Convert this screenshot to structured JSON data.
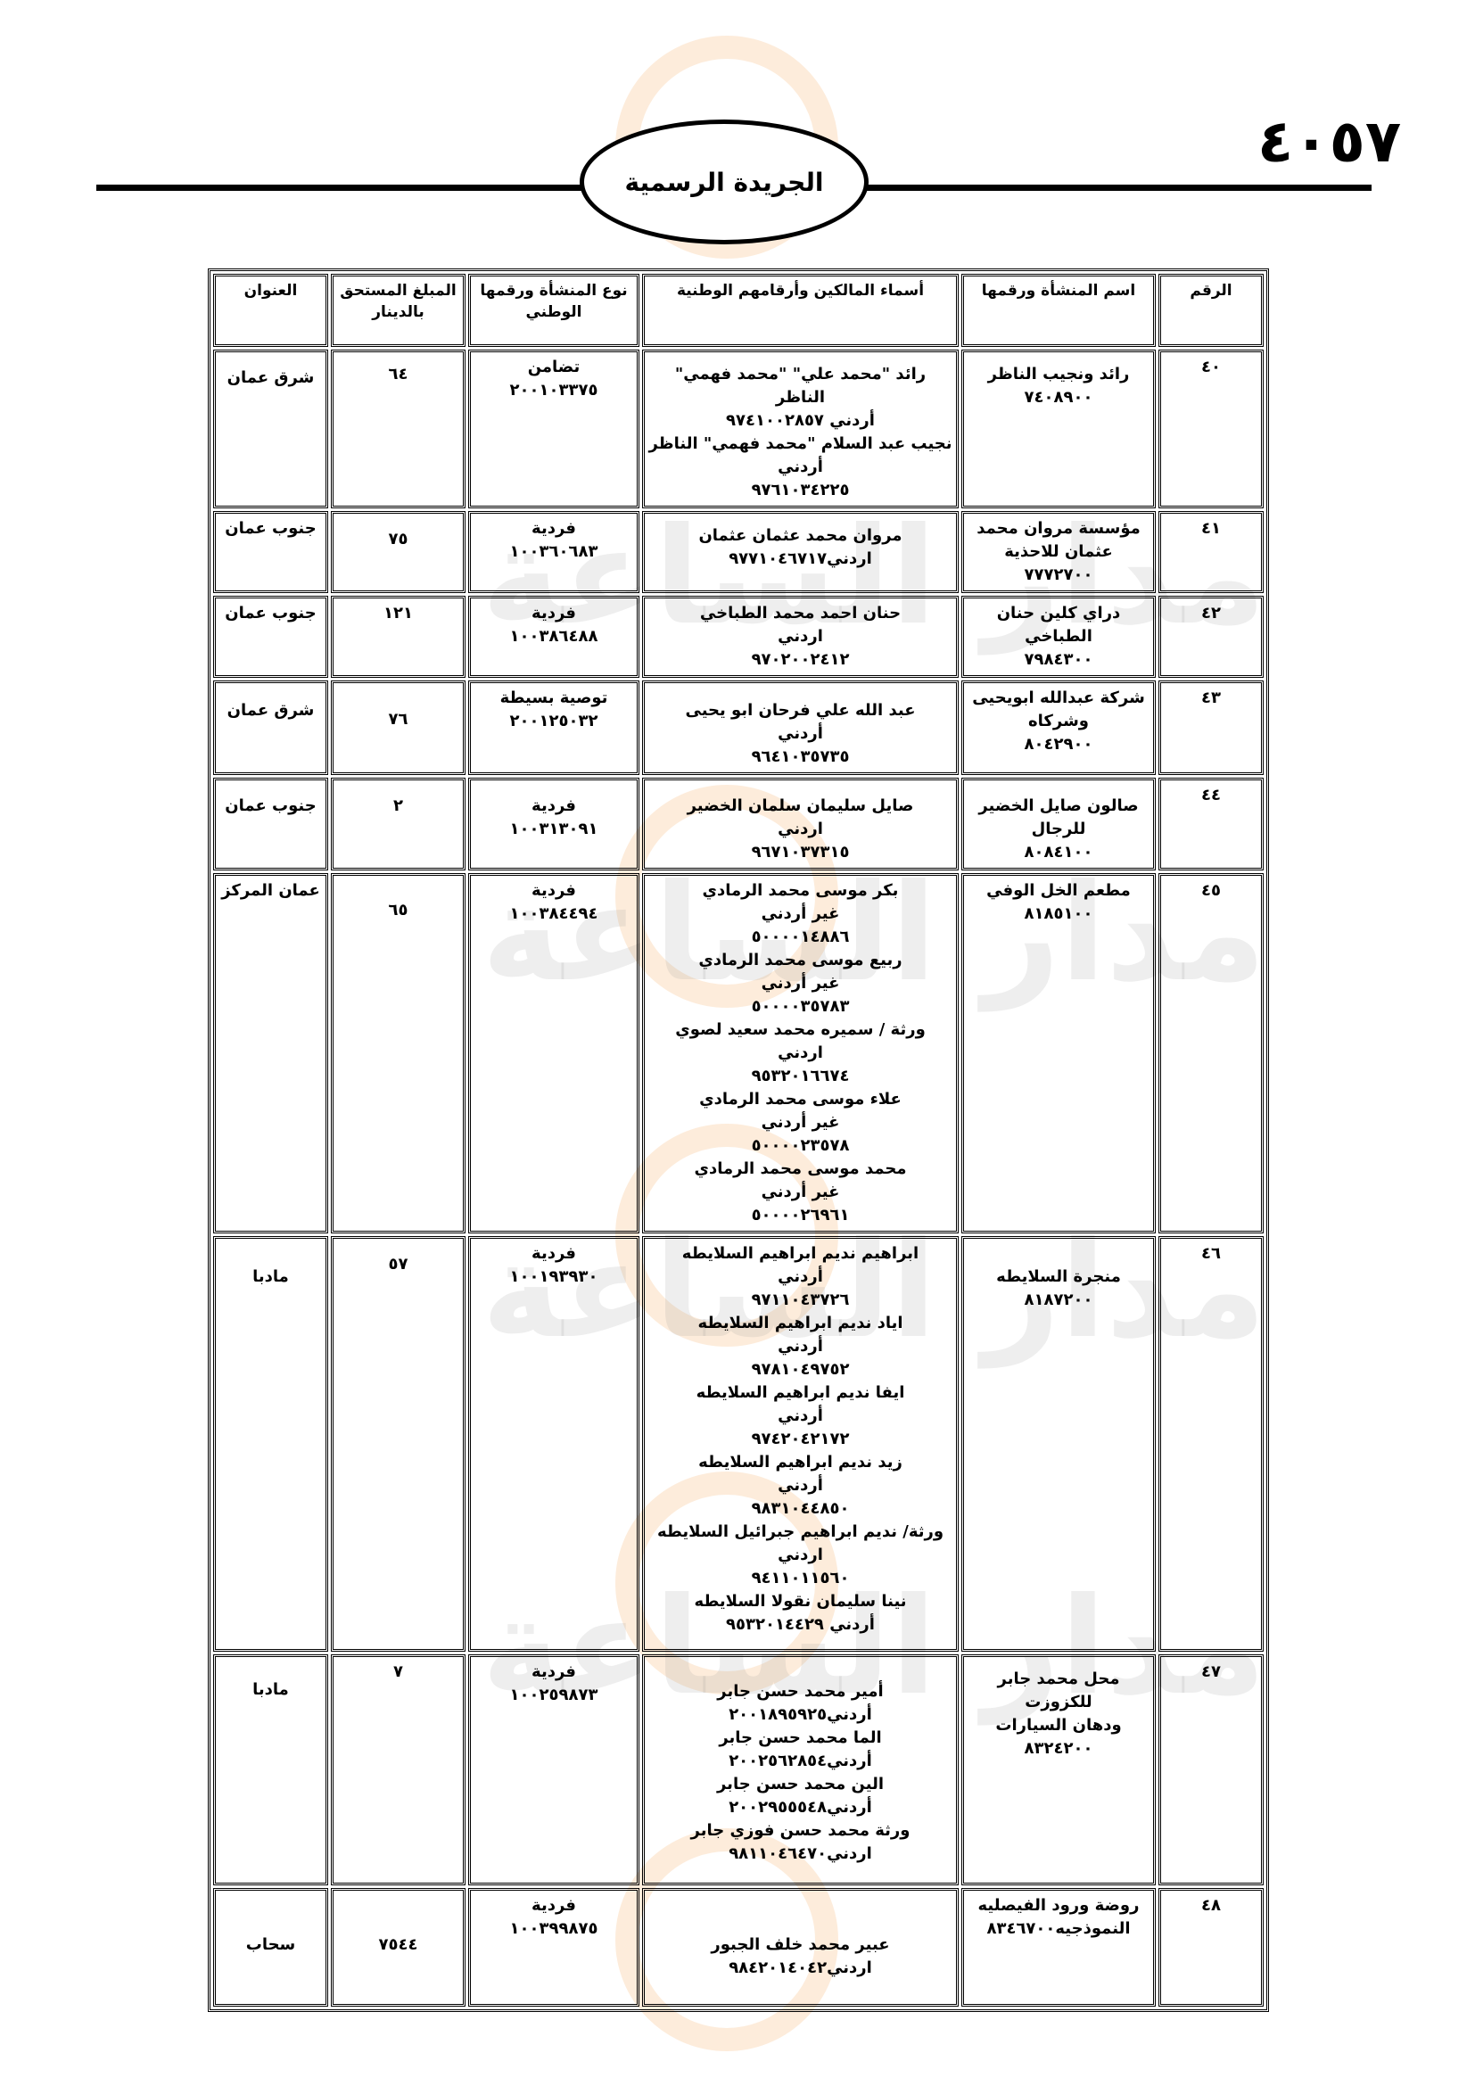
{
  "page_number": "٤٠٥٧",
  "header_title": "الجريدة الرسمية",
  "watermark": "مدار الساعة الإخبارية",
  "table": {
    "headers": [
      "الرقم",
      "اسم المنشأة ورقمها",
      "أسماء المالكين وأرقامهم الوطنية",
      "نوع المنشأة ورقمها الوطني",
      "المبلغ المستحق بالدينار",
      "العنوان"
    ],
    "rows": [
      {
        "num": "٤٠",
        "establishment": [
          "رائد ونجيب الناظر",
          "٧٤٠٨٩٠٠"
        ],
        "owners": [
          "رائد \"محمد علي\" \"محمد فهمي\" الناظر",
          "أردني ٩٧٤١٠٠٢٨٥٧",
          "نجيب عبد السلام \"محمد فهمي\" الناظر",
          "أردني",
          "٩٧٦١٠٣٤٢٢٥"
        ],
        "type": [
          "تضامن",
          "٢٠٠١٠٣٣٧٥"
        ],
        "amount": "٦٤",
        "address": "شرق عمان"
      },
      {
        "num": "٤١",
        "establishment": [
          "مؤسسة مروان محمد",
          "عثمان للاحذية",
          "٧٧٧٢٧٠٠"
        ],
        "owners": [
          "مروان محمد عثمان عثمان",
          "اردني٩٧٧١٠٤٦٧١٧"
        ],
        "type": [
          "فردية",
          "١٠٠٣٦٠٦٨٣"
        ],
        "amount": "٧٥",
        "address": "جنوب عمان"
      },
      {
        "num": "٤٢",
        "establishment": [
          "دراي كلين حنان الطباخي",
          "٧٩٨٤٣٠٠"
        ],
        "owners": [
          "حنان احمد محمد الطباخي",
          "اردني",
          "٩٧٠٢٠٠٢٤١٢"
        ],
        "type": [
          "فردية",
          "١٠٠٣٨٦٤٨٨"
        ],
        "amount": "١٢١",
        "address": "جنوب عمان"
      },
      {
        "num": "٤٣",
        "establishment": [
          "شركة عبدالله ابويحيى",
          "وشركاه",
          "٨٠٤٢٩٠٠"
        ],
        "owners": [
          "عبد الله علي فرحان ابو يحيى",
          "أردني",
          "٩٦٤١٠٣٥٧٣٥"
        ],
        "type": [
          "توصية بسيطة",
          "٢٠٠١٢٥٠٣٢"
        ],
        "amount": "٧٦",
        "address": "شرق عمان"
      },
      {
        "num": "٤٤",
        "establishment": [
          "صالون صايل الخضير",
          "للرجال",
          "٨٠٨٤١٠٠"
        ],
        "owners": [
          "صايل سليمان سلمان الخضير",
          "اردني",
          "٩٦٧١٠٣٧٣١٥"
        ],
        "type": [
          "فردية",
          "١٠٠٣١٣٠٩١"
        ],
        "amount": "٢",
        "address": "جنوب عمان"
      },
      {
        "num": "٤٥",
        "establishment": [
          "مطعم الخل الوفي",
          "٨١٨٥١٠٠"
        ],
        "owners": [
          "بكر موسى محمد الرمادي",
          "غير أردني",
          "٥٠٠٠٠١٤٨٨٦",
          "ربيع موسى محمد الرمادي",
          "غير أردني",
          "٥٠٠٠٠٣٥٧٨٣",
          "ورثة / سميره محمد سعيد لصوي",
          "اردني",
          "٩٥٣٢٠١٦٦٧٤",
          "علاء موسى محمد الرمادي",
          "غير أردني",
          "٥٠٠٠٠٢٣٥٧٨",
          "محمد موسى محمد الرمادي",
          "غير أردني",
          "٥٠٠٠٠٢٦٩٦١"
        ],
        "type": [
          "فردية",
          "١٠٠٣٨٤٤٩٤"
        ],
        "amount": "٦٥",
        "address": "عمان المركز"
      },
      {
        "num": "٤٦",
        "establishment": [
          "منجرة السلايطه",
          "٨١٨٧٢٠٠"
        ],
        "owners": [
          "ابراهيم نديم ابراهيم السلايطه",
          "أردني",
          "٩٧١١٠٤٣٧٢٦",
          "اياد نديم ابراهيم السلايطه",
          "أردني",
          "٩٧٨١٠٤٩٧٥٢",
          "ايفا نديم ابراهيم السلايطه",
          "أردني",
          "٩٧٤٢٠٤٢١٧٢",
          "زيد نديم ابراهيم السلايطه",
          "أردني",
          "٩٨٣١٠٤٤٨٥٠",
          "ورثة/ نديم ابراهيم جبرائيل السلايطه",
          "اردني",
          "٩٤١١٠١١٥٦٠",
          "نينا سليمان نقولا السلايطه",
          "أردني ٩٥٣٢٠١٤٤٢٩"
        ],
        "type": [
          "فردية",
          "١٠٠١٩٣٩٣٠"
        ],
        "amount": "٥٧",
        "address": "مادبا"
      },
      {
        "num": "٤٧",
        "establishment": [
          "محل محمد جابر للكزوزت",
          "ودهان السيارات",
          "٨٣٢٤٢٠٠"
        ],
        "owners": [
          "أمير محمد حسن جابر",
          "أردني٢٠٠١٨٩٥٩٢٥",
          "الما محمد حسن جابر",
          "أردني٢٠٠٢٥٦٢٨٥٤",
          "الين محمد حسن جابر",
          "أردني٢٠٠٢٩٥٥٥٤٨",
          "ورثة محمد حسن فوزي جابر",
          "اردني٩٨١١٠٤٦٤٧٠"
        ],
        "type": [
          "فردية",
          "١٠٠٢٥٩٨٧٣"
        ],
        "amount": "٧",
        "address": "مادبا"
      },
      {
        "num": "٤٨",
        "establishment": [
          "روضة ورود الفيصليه",
          "النموذجيه٨٣٤٦٧٠٠"
        ],
        "owners": [
          "عبير محمد خلف الجبور",
          "اردني٩٨٤٢٠١٤٠٤٢"
        ],
        "type": [
          "فردية",
          "١٠٠٣٩٩٨٧٥"
        ],
        "amount": "٧٥٤٤",
        "address": "سحاب"
      }
    ]
  }
}
